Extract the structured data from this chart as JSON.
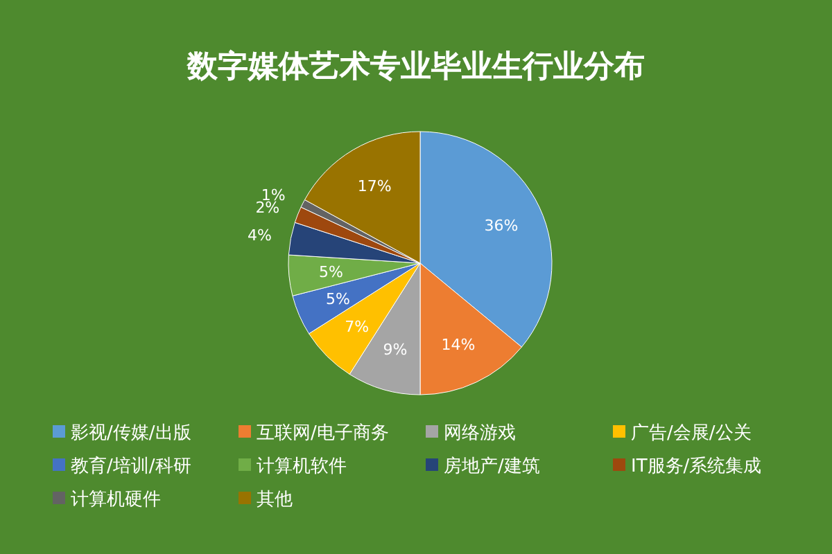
{
  "chart_data": {
    "type": "pie",
    "title": "数字媒体艺术专业毕业生行业分布",
    "categories": [
      "影视/传媒/出版",
      "互联网/电子商务",
      "网络游戏",
      "广告/会展/公关",
      "教育/培训/科研",
      "计算机软件",
      "房地产/建筑",
      "IT服务/系统集成",
      "计算机硬件",
      "其他"
    ],
    "values": [
      36,
      14,
      9,
      7,
      5,
      5,
      4,
      2,
      1,
      17
    ],
    "colors": [
      "#5b9bd5",
      "#ed7d31",
      "#a5a5a5",
      "#ffc000",
      "#4472c4",
      "#70ad47",
      "#264478",
      "#9e480e",
      "#636363",
      "#997300"
    ],
    "value_labels": [
      "36%",
      "14%",
      "9%",
      "7%",
      "5%",
      "5%",
      "4%",
      "2%",
      "1%",
      "17%"
    ],
    "legend": "bottom"
  }
}
